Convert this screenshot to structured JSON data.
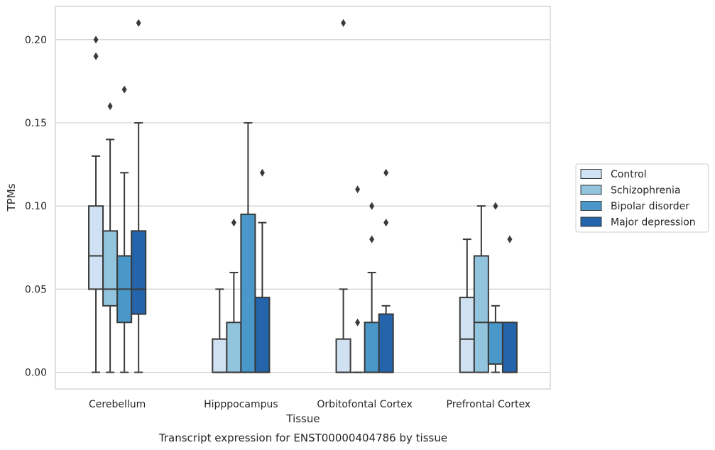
{
  "chart_data": {
    "type": "box",
    "title": "",
    "caption": "Transcript expression for ENST00000404786 by tissue",
    "xlabel": "Tissue",
    "ylabel": "TPMs",
    "ylim": [
      -0.01,
      0.22
    ],
    "yticks": [
      0.0,
      0.05,
      0.1,
      0.15,
      0.2
    ],
    "ytick_labels": [
      "0.00",
      "0.05",
      "0.10",
      "0.15",
      "0.20"
    ],
    "grid": "horizontal",
    "legend_position": "right",
    "categories": [
      "Cerebellum",
      "Hipppocampus",
      "Orbitofontal Cortex",
      "Prefrontal Cortex"
    ],
    "series": [
      {
        "name": "Control",
        "color": "#cfe1f2",
        "boxes": [
          {
            "whislo": 0.0,
            "q1": 0.05,
            "med": 0.07,
            "q3": 0.1,
            "whishi": 0.13,
            "fliers": [
              0.19,
              0.2
            ]
          },
          {
            "whislo": 0.0,
            "q1": 0.0,
            "med": 0.0,
            "q3": 0.02,
            "whishi": 0.05,
            "fliers": []
          },
          {
            "whislo": 0.0,
            "q1": 0.0,
            "med": 0.0,
            "q3": 0.02,
            "whishi": 0.05,
            "fliers": [
              0.21
            ]
          },
          {
            "whislo": 0.0,
            "q1": 0.0,
            "med": 0.02,
            "q3": 0.045,
            "whishi": 0.08,
            "fliers": []
          }
        ]
      },
      {
        "name": "Schizophrenia",
        "color": "#93c4de",
        "boxes": [
          {
            "whislo": 0.0,
            "q1": 0.04,
            "med": 0.05,
            "q3": 0.085,
            "whishi": 0.14,
            "fliers": [
              0.16
            ]
          },
          {
            "whislo": 0.0,
            "q1": 0.0,
            "med": 0.0,
            "q3": 0.03,
            "whishi": 0.06,
            "fliers": [
              0.09
            ]
          },
          {
            "whislo": 0.0,
            "q1": 0.0,
            "med": 0.0,
            "q3": 0.0,
            "whishi": 0.0,
            "fliers": [
              0.03,
              0.11
            ]
          },
          {
            "whislo": 0.0,
            "q1": 0.0,
            "med": 0.03,
            "q3": 0.07,
            "whishi": 0.1,
            "fliers": []
          }
        ]
      },
      {
        "name": "Bipolar disorder",
        "color": "#4a98c9",
        "boxes": [
          {
            "whislo": 0.0,
            "q1": 0.03,
            "med": 0.05,
            "q3": 0.07,
            "whishi": 0.12,
            "fliers": [
              0.17
            ]
          },
          {
            "whislo": 0.0,
            "q1": 0.0,
            "med": 0.0,
            "q3": 0.095,
            "whishi": 0.15,
            "fliers": []
          },
          {
            "whislo": 0.0,
            "q1": 0.0,
            "med": 0.0,
            "q3": 0.03,
            "whishi": 0.06,
            "fliers": [
              0.08,
              0.1
            ]
          },
          {
            "whislo": 0.0,
            "q1": 0.005,
            "med": 0.03,
            "q3": 0.03,
            "whishi": 0.04,
            "fliers": [
              0.1
            ]
          }
        ]
      },
      {
        "name": "Major depression",
        "color": "#2364aa",
        "boxes": [
          {
            "whislo": 0.0,
            "q1": 0.035,
            "med": 0.05,
            "q3": 0.085,
            "whishi": 0.15,
            "fliers": [
              0.21
            ]
          },
          {
            "whislo": 0.0,
            "q1": 0.0,
            "med": 0.0,
            "q3": 0.045,
            "whishi": 0.09,
            "fliers": [
              0.12
            ]
          },
          {
            "whislo": 0.0,
            "q1": 0.0,
            "med": 0.0,
            "q3": 0.035,
            "whishi": 0.04,
            "fliers": [
              0.09,
              0.12
            ]
          },
          {
            "whislo": 0.0,
            "q1": 0.0,
            "med": 0.0,
            "q3": 0.03,
            "whishi": 0.03,
            "fliers": [
              0.08
            ]
          }
        ]
      }
    ],
    "colors": {
      "edge": "#3a3a3a",
      "grid": "#cccccc",
      "frame": "#cccccc",
      "text": "#262626"
    }
  }
}
